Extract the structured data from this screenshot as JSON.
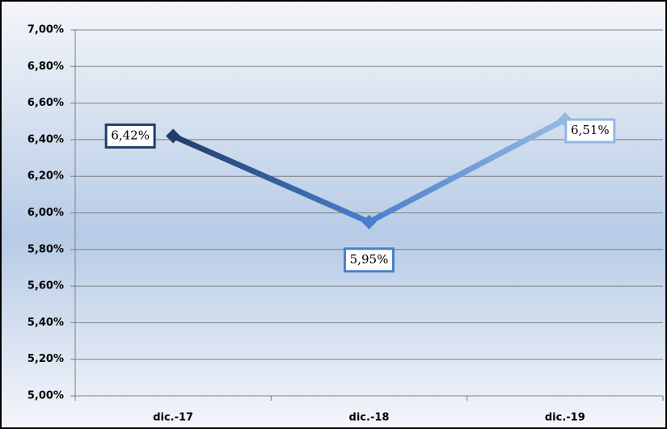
{
  "chart_data": {
    "type": "line",
    "categories": [
      "dic.-17",
      "dic.-18",
      "dic.-19"
    ],
    "series": [
      {
        "values": [
          6.42,
          5.95,
          6.51
        ],
        "value_labels": [
          "6,42%",
          "5,95%",
          "6,51%"
        ],
        "point_colors": [
          "#1f3d6b",
          "#4a7fcc",
          "#95b8e3"
        ]
      }
    ],
    "ylim": [
      5,
      7
    ],
    "yticks": [
      {
        "value": 5,
        "label": "5,00%"
      },
      {
        "value": 5.2,
        "label": "5,20%"
      },
      {
        "value": 5.4,
        "label": "5,40%"
      },
      {
        "value": 5.6,
        "label": "5,60%"
      },
      {
        "value": 5.8,
        "label": "5,80%"
      },
      {
        "value": 6,
        "label": "6,00%"
      },
      {
        "value": 6.2,
        "label": "6,20%"
      },
      {
        "value": 6.4,
        "label": "6,40%"
      },
      {
        "value": 6.6,
        "label": "6,60%"
      },
      {
        "value": 6.8,
        "label": "6,80%"
      },
      {
        "value": 7,
        "label": "7,00%"
      }
    ],
    "grid": true
  }
}
